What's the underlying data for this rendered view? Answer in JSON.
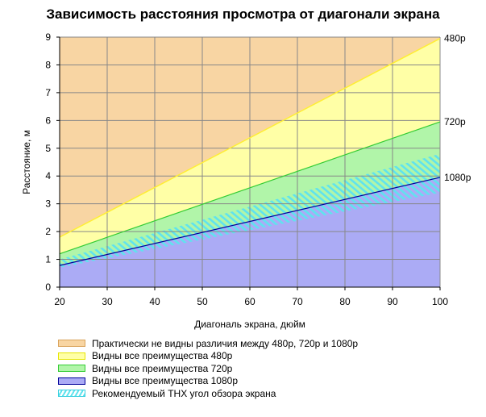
{
  "chart_data": {
    "type": "area",
    "title": "Зависимость расстояния просмотра от диагонали экрана",
    "xlabel": "Диагональ экрана, дюйм",
    "ylabel": "Расстояние, м",
    "xlim": [
      20,
      100
    ],
    "ylim": [
      0,
      9
    ],
    "x_ticks": [
      "20",
      "30",
      "40",
      "50",
      "60",
      "70",
      "80",
      "90",
      "100"
    ],
    "y_ticks": [
      "0",
      "1",
      "2",
      "3",
      "4",
      "5",
      "6",
      "7",
      "8",
      "9"
    ],
    "grid": true,
    "series": [
      {
        "name": "480p",
        "x": [
          20,
          100
        ],
        "y": [
          1.8,
          8.95
        ],
        "color": "#ffee33"
      },
      {
        "name": "720p",
        "x": [
          20,
          100
        ],
        "y": [
          1.2,
          5.95
        ],
        "color": "#33cc33"
      },
      {
        "name": "1080p",
        "x": [
          20,
          100
        ],
        "y": [
          0.78,
          3.95
        ],
        "color": "#000099"
      }
    ],
    "thx_band": {
      "x": [
        20,
        100
      ],
      "upper": [
        1.0,
        4.8
      ],
      "lower": [
        0.7,
        3.4
      ]
    },
    "fills": {
      "top": "#f8d5a3",
      "480p": "#ffffa6",
      "720p": "#b1f5a9",
      "1080p": "#ababf5",
      "hatch": "#5fe3ee"
    },
    "legend": [
      {
        "label": "Практически не видны различия между 480p, 720p и 1080p",
        "fill": "#f8d5a3",
        "border": "#d9a35c"
      },
      {
        "label": "Видны все преимущества 480p",
        "fill": "#ffffa6",
        "border": "#e6e600"
      },
      {
        "label": "Видны все преимущества 720p",
        "fill": "#b1f5a9",
        "border": "#33cc33"
      },
      {
        "label": "Видны все преимущества 1080p",
        "fill": "#ababf5",
        "border": "#000099"
      },
      {
        "label": "Рекомендуемый THX угол обзора экрана",
        "fill": "hatch",
        "border": "#3ad0de"
      }
    ],
    "legend_position": "bottom"
  }
}
